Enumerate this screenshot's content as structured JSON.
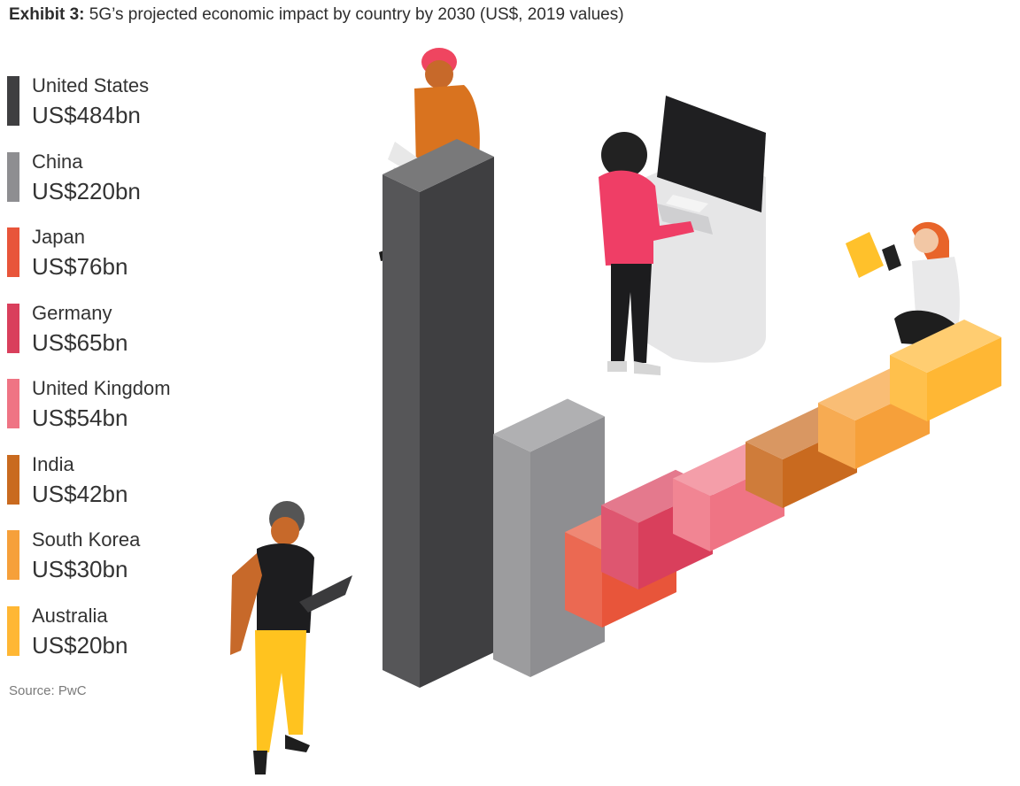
{
  "title": {
    "bold": "Exhibit 3:",
    "rest": "5G’s projected economic impact by country by 2030 (US$, 2019 values)"
  },
  "source": "Source: PwC",
  "chart_data": {
    "type": "bar",
    "title": "Exhibit 3: 5G’s projected economic impact by country by 2030 (US$, 2019 values)",
    "unit": "US$bn",
    "categories": [
      "United States",
      "China",
      "Japan",
      "Germany",
      "United Kingdom",
      "India",
      "South Korea",
      "Australia"
    ],
    "values": [
      484,
      220,
      76,
      65,
      54,
      42,
      30,
      20
    ],
    "value_labels": [
      "US$484bn",
      "US$220bn",
      "US$76bn",
      "US$65bn",
      "US$54bn",
      "US$42bn",
      "US$30bn",
      "US$20bn"
    ],
    "colors": [
      "#3f3f41",
      "#8e8e91",
      "#e8553a",
      "#d93f5c",
      "#ef7484",
      "#c96a1f",
      "#f6a03a",
      "#ffb734"
    ],
    "legend_position": "left",
    "grid": false
  }
}
